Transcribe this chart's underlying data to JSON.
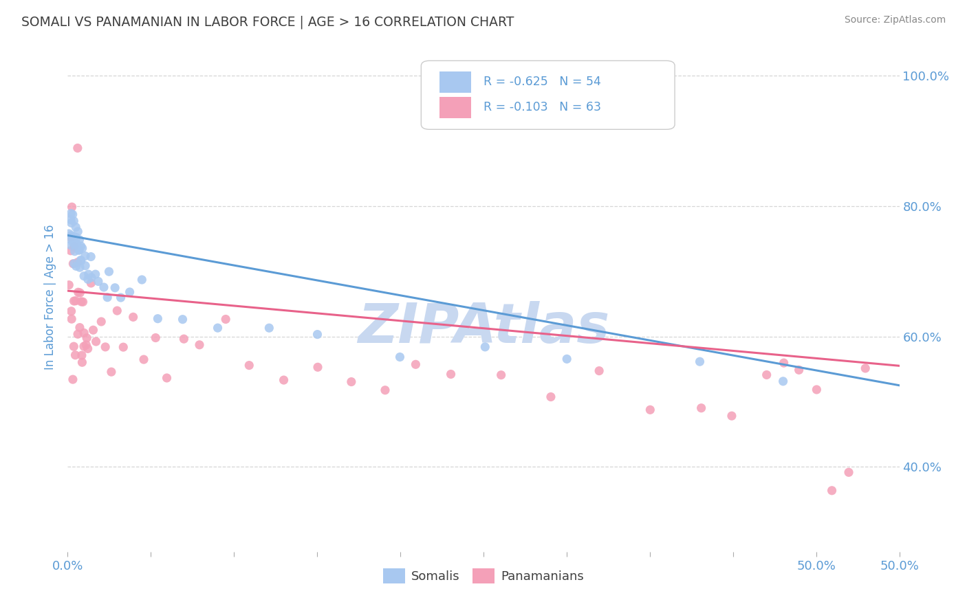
{
  "title": "SOMALI VS PANAMANIAN IN LABOR FORCE | AGE > 16 CORRELATION CHART",
  "source_text": "Source: ZipAtlas.com",
  "ylabel_text": "In Labor Force | Age > 16",
  "xlim": [
    0.0,
    0.5
  ],
  "ylim": [
    0.27,
    1.05
  ],
  "somali_R": -0.625,
  "somali_N": 54,
  "panamanian_R": -0.103,
  "panamanian_N": 63,
  "somali_color": "#A8C8F0",
  "panamanian_color": "#F4A0B8",
  "somali_line_color": "#5B9BD5",
  "panamanian_line_color": "#E8628A",
  "legend_label_somali": "Somalis",
  "legend_label_panamanian": "Panamanians",
  "background_color": "#FFFFFF",
  "grid_color": "#CCCCCC",
  "title_color": "#404040",
  "axis_label_color": "#5B9BD5",
  "watermark_color": "#C8D8F0",
  "somali_x": [
    0.001,
    0.001,
    0.002,
    0.002,
    0.002,
    0.002,
    0.003,
    0.003,
    0.003,
    0.003,
    0.004,
    0.004,
    0.004,
    0.004,
    0.005,
    0.005,
    0.005,
    0.005,
    0.006,
    0.006,
    0.006,
    0.007,
    0.007,
    0.007,
    0.008,
    0.008,
    0.009,
    0.009,
    0.01,
    0.01,
    0.011,
    0.012,
    0.013,
    0.014,
    0.015,
    0.017,
    0.019,
    0.021,
    0.023,
    0.025,
    0.028,
    0.032,
    0.037,
    0.045,
    0.055,
    0.07,
    0.09,
    0.12,
    0.15,
    0.2,
    0.25,
    0.3,
    0.38,
    0.43
  ],
  "somali_y": [
    0.78,
    0.76,
    0.8,
    0.77,
    0.75,
    0.73,
    0.79,
    0.77,
    0.75,
    0.73,
    0.78,
    0.76,
    0.74,
    0.72,
    0.77,
    0.75,
    0.73,
    0.71,
    0.76,
    0.74,
    0.72,
    0.75,
    0.73,
    0.71,
    0.74,
    0.72,
    0.73,
    0.71,
    0.72,
    0.7,
    0.71,
    0.7,
    0.69,
    0.68,
    0.71,
    0.69,
    0.68,
    0.67,
    0.66,
    0.7,
    0.68,
    0.66,
    0.65,
    0.68,
    0.63,
    0.63,
    0.62,
    0.61,
    0.6,
    0.58,
    0.58,
    0.57,
    0.55,
    0.53
  ],
  "panamanian_x": [
    0.001,
    0.001,
    0.002,
    0.002,
    0.002,
    0.003,
    0.003,
    0.003,
    0.004,
    0.004,
    0.004,
    0.005,
    0.005,
    0.005,
    0.006,
    0.006,
    0.006,
    0.007,
    0.007,
    0.008,
    0.008,
    0.009,
    0.009,
    0.01,
    0.01,
    0.011,
    0.012,
    0.013,
    0.014,
    0.016,
    0.018,
    0.02,
    0.023,
    0.026,
    0.03,
    0.034,
    0.04,
    0.046,
    0.053,
    0.06,
    0.07,
    0.08,
    0.095,
    0.11,
    0.13,
    0.15,
    0.17,
    0.19,
    0.21,
    0.23,
    0.26,
    0.29,
    0.32,
    0.35,
    0.38,
    0.4,
    0.42,
    0.43,
    0.44,
    0.45,
    0.46,
    0.47,
    0.48
  ],
  "panamanian_y": [
    0.75,
    0.68,
    0.72,
    0.65,
    0.8,
    0.7,
    0.62,
    0.55,
    0.73,
    0.66,
    0.58,
    0.71,
    0.64,
    0.57,
    0.69,
    0.62,
    0.88,
    0.67,
    0.6,
    0.65,
    0.58,
    0.64,
    0.57,
    0.63,
    0.56,
    0.61,
    0.59,
    0.57,
    0.68,
    0.63,
    0.58,
    0.64,
    0.6,
    0.55,
    0.63,
    0.58,
    0.62,
    0.57,
    0.6,
    0.55,
    0.6,
    0.58,
    0.63,
    0.55,
    0.54,
    0.56,
    0.53,
    0.52,
    0.55,
    0.54,
    0.52,
    0.51,
    0.55,
    0.5,
    0.49,
    0.47,
    0.55,
    0.56,
    0.54,
    0.52,
    0.37,
    0.38,
    0.55
  ],
  "somali_line_x": [
    0.0,
    0.5
  ],
  "somali_line_y": [
    0.755,
    0.525
  ],
  "panamanian_line_x": [
    0.0,
    0.5
  ],
  "panamanian_line_y": [
    0.67,
    0.555
  ],
  "ytick_vals": [
    0.4,
    0.6,
    0.8,
    1.0
  ],
  "ytick_labels": [
    "40.0%",
    "60.0%",
    "80.0%",
    "100.0%"
  ],
  "xtick_vals": [
    0.0,
    0.05,
    0.1,
    0.15,
    0.2,
    0.25,
    0.3,
    0.35,
    0.4,
    0.45,
    0.5
  ],
  "xtick_labels_show": {
    "0.0": "0.0%",
    "0.5": "50.0%"
  }
}
